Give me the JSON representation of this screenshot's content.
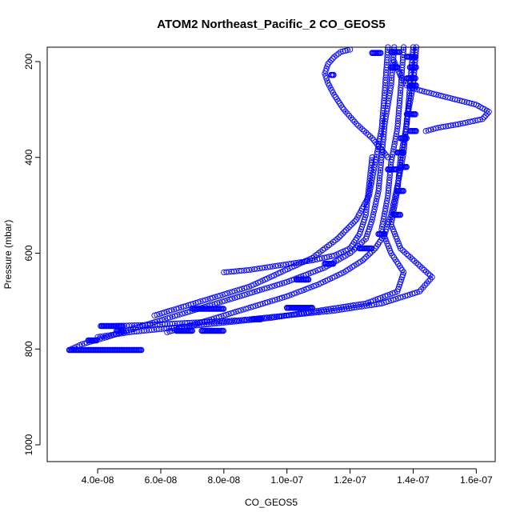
{
  "chart_data": {
    "type": "scatter",
    "title": "ATOM2 Northeast_Pacific_2 CO_GEOS5",
    "xlabel": "CO_GEOS5",
    "ylabel": "Pressure (mbar)",
    "xlim": [
      2.4e-08,
      1.66e-07
    ],
    "ylim": [
      1035,
      170
    ],
    "y_axis_inverted": true,
    "x_ticks": [
      {
        "value": 4e-08,
        "label": "4.0e-08"
      },
      {
        "value": 6e-08,
        "label": "6.0e-08"
      },
      {
        "value": 8e-08,
        "label": "8.0e-08"
      },
      {
        "value": 1e-07,
        "label": "1.0e-07"
      },
      {
        "value": 1.2e-07,
        "label": "1.2e-07"
      },
      {
        "value": 1.4e-07,
        "label": "1.4e-07"
      },
      {
        "value": 1.6e-07,
        "label": "1.6e-07"
      }
    ],
    "y_ticks": [
      {
        "value": 200,
        "label": "200"
      },
      {
        "value": 400,
        "label": "400"
      },
      {
        "value": 600,
        "label": "600"
      },
      {
        "value": 800,
        "label": "800"
      },
      {
        "value": 1000,
        "label": "1000"
      }
    ],
    "marker": "open-circle",
    "line_style": "dashed",
    "color": "#0000ff",
    "grid": false,
    "legend": "none",
    "series": [
      {
        "x": [
          1.34e-07,
          1.33e-07,
          1.31e-07,
          1.3e-07,
          1.29e-07,
          1.27e-07,
          1.25e-07,
          1.2e-07,
          1.12e-07,
          1e-07,
          8.5e-08,
          7e-08,
          5.5e-08,
          4.3e-08,
          3.5e-08,
          3.1e-08
        ],
        "y": [
          170,
          250,
          330,
          400,
          470,
          530,
          570,
          600,
          630,
          660,
          690,
          720,
          750,
          775,
          790,
          802
        ]
      },
      {
        "x": [
          1.4e-07,
          1.39e-07,
          1.38e-07,
          1.36e-07,
          1.35e-07,
          1.33e-07,
          1.36e-07,
          1.41e-07,
          1.46e-07,
          1.42e-07,
          1.3e-07,
          1.15e-07,
          1e-07,
          8.5e-08,
          7e-08,
          5.5e-08,
          4.5e-08,
          4.2e-08
        ],
        "y": [
          170,
          250,
          330,
          400,
          470,
          540,
          590,
          620,
          650,
          680,
          705,
          720,
          730,
          740,
          745,
          750,
          752,
          752
        ]
      },
      {
        "x": [
          1.37e-07,
          1.36e-07,
          1.35e-07,
          1.33e-07,
          1.32e-07,
          1.3e-07,
          1.33e-07,
          1.37e-07,
          1.35e-07,
          1.25e-07,
          1.1e-07,
          9.5e-08,
          8e-08,
          6.5e-08,
          5e-08,
          4e-08
        ],
        "y": [
          170,
          260,
          340,
          410,
          480,
          550,
          600,
          640,
          680,
          705,
          720,
          735,
          745,
          755,
          765,
          775
        ]
      },
      {
        "x": [
          1.32e-07,
          1.31e-07,
          1.3e-07,
          1.28e-07,
          1.26e-07,
          1.22e-07,
          1.16e-07,
          1.08e-07,
          9.8e-08,
          8.8e-08,
          7.8e-08,
          6.8e-08,
          5.8e-08
        ],
        "y": [
          170,
          260,
          340,
          410,
          480,
          530,
          570,
          610,
          640,
          670,
          690,
          710,
          730
        ]
      },
      {
        "x": [
          1.41e-07,
          1.4e-07,
          1.38e-07,
          1.37e-07,
          1.35e-07,
          1.33e-07,
          1.31e-07,
          1.28e-07,
          1.24e-07,
          1.18e-07,
          1.1e-07,
          1e-07,
          9e-08,
          8e-08,
          7e-08,
          6.2e-08
        ],
        "y": [
          170,
          250,
          320,
          390,
          460,
          520,
          560,
          590,
          615,
          640,
          665,
          690,
          710,
          730,
          750,
          765
        ]
      },
      {
        "x": [
          1.34e-07,
          1.36e-07,
          1.38e-07,
          1.42e-07,
          1.48e-07,
          1.54e-07,
          1.6e-07,
          1.64e-07,
          1.62e-07,
          1.55e-07,
          1.48e-07,
          1.44e-07
        ],
        "y": [
          200,
          230,
          250,
          260,
          270,
          280,
          290,
          305,
          320,
          330,
          338,
          345
        ]
      },
      {
        "x": [
          1.2e-07,
          1.17e-07,
          1.15e-07,
          1.13e-07,
          1.12e-07,
          1.13e-07,
          1.15e-07,
          1.18e-07,
          1.22e-07,
          1.27e-07,
          1.32e-07
        ],
        "y": [
          175,
          180,
          190,
          205,
          225,
          245,
          270,
          300,
          330,
          360,
          400
        ]
      },
      {
        "x": [
          1.27e-07,
          1.26e-07,
          1.25e-07,
          1.23e-07,
          1.2e-07,
          1.15e-07,
          1.08e-07,
          9.8e-08,
          8.8e-08,
          8e-08
        ],
        "y": [
          400,
          460,
          520,
          560,
          590,
          605,
          615,
          625,
          635,
          640
        ]
      }
    ],
    "horizontal_runs": [
      {
        "x_start": 3.1e-08,
        "x_end": 5.4e-08,
        "y": 802
      },
      {
        "x_start": 3.7e-08,
        "x_end": 4e-08,
        "y": 782
      },
      {
        "x_start": 4.1e-08,
        "x_end": 4.8e-08,
        "y": 752
      },
      {
        "x_start": 4.6e-08,
        "x_end": 4.8e-08,
        "y": 762
      },
      {
        "x_start": 6.5e-08,
        "x_end": 7e-08,
        "y": 762
      },
      {
        "x_start": 7.3e-08,
        "x_end": 8e-08,
        "y": 762
      },
      {
        "x_start": 7e-08,
        "x_end": 8e-08,
        "y": 716
      },
      {
        "x_start": 8.9e-08,
        "x_end": 9.2e-08,
        "y": 738
      },
      {
        "x_start": 1e-07,
        "x_end": 1.08e-07,
        "y": 714
      },
      {
        "x_start": 1.03e-07,
        "x_end": 1.07e-07,
        "y": 655
      },
      {
        "x_start": 1.12e-07,
        "x_end": 1.15e-07,
        "y": 622
      },
      {
        "x_start": 1.23e-07,
        "x_end": 1.27e-07,
        "y": 590
      },
      {
        "x_start": 1.29e-07,
        "x_end": 1.31e-07,
        "y": 560
      },
      {
        "x_start": 1.34e-07,
        "x_end": 1.36e-07,
        "y": 520
      },
      {
        "x_start": 1.35e-07,
        "x_end": 1.37e-07,
        "y": 470
      },
      {
        "x_start": 1.36e-07,
        "x_end": 1.38e-07,
        "y": 420
      },
      {
        "x_start": 1.35e-07,
        "x_end": 1.37e-07,
        "y": 390
      },
      {
        "x_start": 1.36e-07,
        "x_end": 1.38e-07,
        "y": 360
      },
      {
        "x_start": 1.39e-07,
        "x_end": 1.41e-07,
        "y": 345
      },
      {
        "x_start": 1.38e-07,
        "x_end": 1.41e-07,
        "y": 310
      },
      {
        "x_start": 1.39e-07,
        "x_end": 1.41e-07,
        "y": 250
      },
      {
        "x_start": 1.38e-07,
        "x_end": 1.41e-07,
        "y": 235
      },
      {
        "x_start": 1.39e-07,
        "x_end": 1.41e-07,
        "y": 212
      },
      {
        "x_start": 1.33e-07,
        "x_end": 1.35e-07,
        "y": 212
      },
      {
        "x_start": 1.38e-07,
        "x_end": 1.41e-07,
        "y": 190
      },
      {
        "x_start": 1.33e-07,
        "x_end": 1.36e-07,
        "y": 180
      },
      {
        "x_start": 1.27e-07,
        "x_end": 1.3e-07,
        "y": 182
      },
      {
        "x_start": 1.32e-07,
        "x_end": 1.35e-07,
        "y": 425
      },
      {
        "x_start": 1.14e-07,
        "x_end": 1.15e-07,
        "y": 228
      }
    ]
  }
}
